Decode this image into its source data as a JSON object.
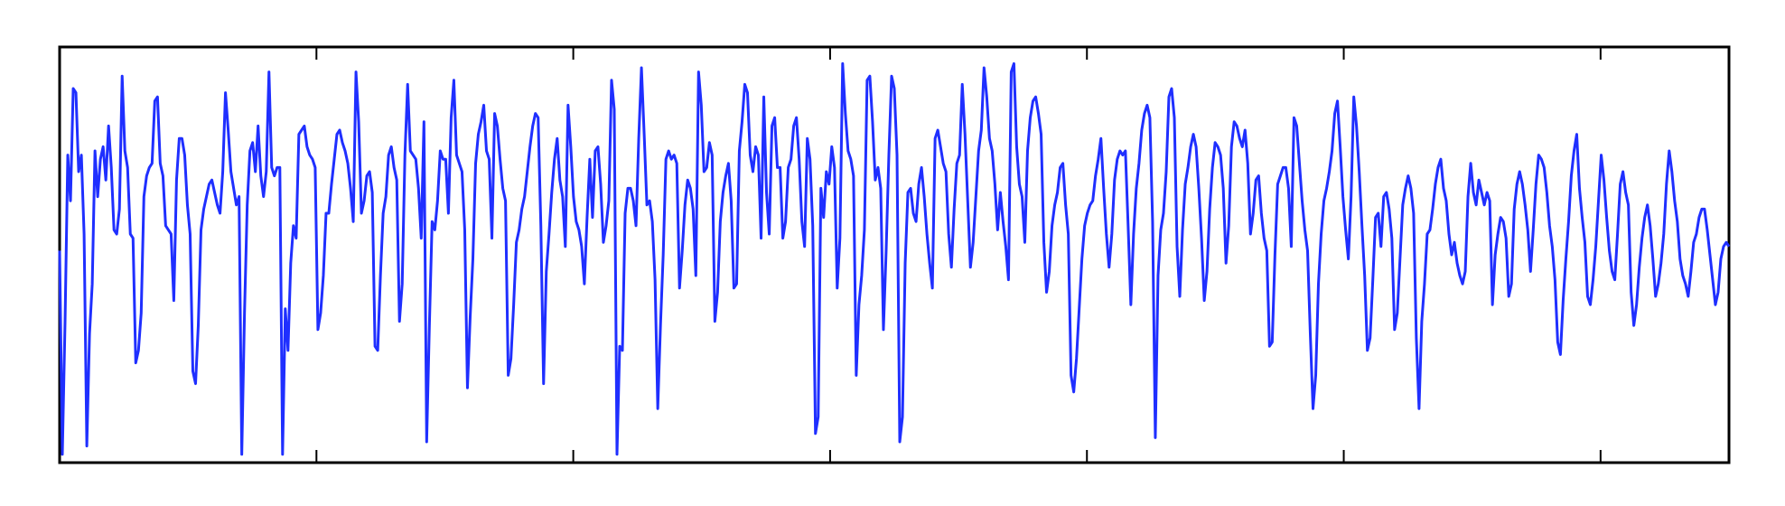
{
  "chart_data": {
    "type": "line",
    "title": "",
    "xlabel": "",
    "ylabel": "",
    "grid": false,
    "legend": "none",
    "xlim": [
      0,
      650
    ],
    "ylim": [
      0,
      1
    ],
    "xticks": [
      0,
      100,
      200,
      300,
      400,
      500,
      600
    ],
    "xtick_labels_shown": false,
    "yticks_shown": false,
    "series": [
      {
        "color": "#1f2fff",
        "x_start": 0,
        "x_end": 650,
        "values": [
          0.51,
          0.02,
          0.34,
          0.74,
          0.63,
          0.9,
          0.89,
          0.7,
          0.74,
          0.55,
          0.04,
          0.31,
          0.43,
          0.75,
          0.64,
          0.73,
          0.76,
          0.68,
          0.81,
          0.71,
          0.56,
          0.55,
          0.61,
          0.93,
          0.75,
          0.71,
          0.55,
          0.54,
          0.24,
          0.27,
          0.36,
          0.64,
          0.69,
          0.71,
          0.72,
          0.87,
          0.88,
          0.72,
          0.69,
          0.57,
          0.56,
          0.55,
          0.39,
          0.68,
          0.78,
          0.78,
          0.74,
          0.62,
          0.55,
          0.22,
          0.19,
          0.33,
          0.56,
          0.61,
          0.64,
          0.67,
          0.68,
          0.65,
          0.62,
          0.6,
          0.7,
          0.89,
          0.8,
          0.7,
          0.66,
          0.62,
          0.64,
          0.02,
          0.36,
          0.62,
          0.75,
          0.77,
          0.7,
          0.81,
          0.69,
          0.64,
          0.7,
          0.94,
          0.71,
          0.69,
          0.71,
          0.71,
          0.02,
          0.37,
          0.27,
          0.48,
          0.57,
          0.54,
          0.79,
          0.8,
          0.81,
          0.76,
          0.74,
          0.73,
          0.71,
          0.32,
          0.36,
          0.45,
          0.6,
          0.6,
          0.67,
          0.73,
          0.79,
          0.8,
          0.77,
          0.75,
          0.72,
          0.66,
          0.58,
          0.94,
          0.82,
          0.6,
          0.63,
          0.69,
          0.7,
          0.65,
          0.28,
          0.27,
          0.45,
          0.6,
          0.64,
          0.74,
          0.76,
          0.71,
          0.68,
          0.34,
          0.43,
          0.74,
          0.91,
          0.75,
          0.74,
          0.73,
          0.66,
          0.54,
          0.82,
          0.05,
          0.33,
          0.58,
          0.56,
          0.63,
          0.75,
          0.73,
          0.73,
          0.6,
          0.83,
          0.92,
          0.74,
          0.72,
          0.7,
          0.56,
          0.18,
          0.35,
          0.49,
          0.72,
          0.79,
          0.82,
          0.86,
          0.75,
          0.73,
          0.54,
          0.84,
          0.81,
          0.73,
          0.66,
          0.63,
          0.21,
          0.25,
          0.38,
          0.53,
          0.56,
          0.61,
          0.64,
          0.7,
          0.76,
          0.81,
          0.84,
          0.83,
          0.57,
          0.19,
          0.46,
          0.55,
          0.65,
          0.73,
          0.78,
          0.68,
          0.64,
          0.52,
          0.86,
          0.76,
          0.64,
          0.58,
          0.56,
          0.52,
          0.43,
          0.59,
          0.73,
          0.59,
          0.75,
          0.76,
          0.67,
          0.53,
          0.57,
          0.63,
          0.92,
          0.85,
          0.02,
          0.28,
          0.27,
          0.6,
          0.66,
          0.66,
          0.63,
          0.57,
          0.78,
          0.95,
          0.79,
          0.62,
          0.63,
          0.58,
          0.44,
          0.13,
          0.33,
          0.5,
          0.73,
          0.75,
          0.73,
          0.74,
          0.72,
          0.42,
          0.51,
          0.62,
          0.68,
          0.66,
          0.61,
          0.45,
          0.94,
          0.86,
          0.7,
          0.71,
          0.77,
          0.74,
          0.34,
          0.41,
          0.58,
          0.65,
          0.69,
          0.72,
          0.63,
          0.42,
          0.43,
          0.75,
          0.82,
          0.91,
          0.89,
          0.74,
          0.7,
          0.76,
          0.74,
          0.54,
          0.88,
          0.65,
          0.55,
          0.81,
          0.83,
          0.71,
          0.71,
          0.54,
          0.58,
          0.71,
          0.73,
          0.81,
          0.83,
          0.73,
          0.58,
          0.52,
          0.78,
          0.73,
          0.57,
          0.07,
          0.11,
          0.66,
          0.59,
          0.7,
          0.67,
          0.76,
          0.71,
          0.42,
          0.54,
          0.96,
          0.84,
          0.75,
          0.73,
          0.69,
          0.21,
          0.38,
          0.45,
          0.56,
          0.92,
          0.93,
          0.82,
          0.68,
          0.71,
          0.66,
          0.32,
          0.51,
          0.74,
          0.93,
          0.9,
          0.74,
          0.05,
          0.11,
          0.48,
          0.65,
          0.66,
          0.6,
          0.58,
          0.67,
          0.71,
          0.64,
          0.55,
          0.48,
          0.42,
          0.78,
          0.8,
          0.76,
          0.72,
          0.7,
          0.55,
          0.47,
          0.61,
          0.72,
          0.74,
          0.91,
          0.79,
          0.63,
          0.47,
          0.53,
          0.64,
          0.75,
          0.8,
          0.95,
          0.88,
          0.78,
          0.75,
          0.67,
          0.56,
          0.65,
          0.58,
          0.52,
          0.44,
          0.94,
          0.96,
          0.76,
          0.67,
          0.64,
          0.53,
          0.75,
          0.83,
          0.87,
          0.88,
          0.84,
          0.79,
          0.53,
          0.41,
          0.46,
          0.57,
          0.62,
          0.65,
          0.71,
          0.72,
          0.62,
          0.55,
          0.21,
          0.17,
          0.25,
          0.37,
          0.49,
          0.57,
          0.6,
          0.62,
          0.63,
          0.69,
          0.73,
          0.78,
          0.66,
          0.55,
          0.47,
          0.55,
          0.68,
          0.73,
          0.75,
          0.74,
          0.75,
          0.57,
          0.38,
          0.55,
          0.66,
          0.72,
          0.8,
          0.84,
          0.86,
          0.83,
          0.58,
          0.06,
          0.45,
          0.56,
          0.6,
          0.7,
          0.88,
          0.9,
          0.83,
          0.52,
          0.4,
          0.56,
          0.67,
          0.71,
          0.76,
          0.79,
          0.76,
          0.66,
          0.54,
          0.39,
          0.46,
          0.61,
          0.71,
          0.77,
          0.76,
          0.74,
          0.66,
          0.48,
          0.57,
          0.76,
          0.82,
          0.81,
          0.78,
          0.76,
          0.8,
          0.72,
          0.55,
          0.6,
          0.68,
          0.69,
          0.6,
          0.54,
          0.51,
          0.28,
          0.29,
          0.5,
          0.67,
          0.69,
          0.71,
          0.71,
          0.66,
          0.52,
          0.83,
          0.81,
          0.72,
          0.63,
          0.56,
          0.51,
          0.31,
          0.13,
          0.21,
          0.43,
          0.55,
          0.63,
          0.66,
          0.7,
          0.75,
          0.84,
          0.87,
          0.76,
          0.64,
          0.56,
          0.49,
          0.64,
          0.88,
          0.81,
          0.7,
          0.57,
          0.45,
          0.27,
          0.3,
          0.44,
          0.59,
          0.6,
          0.52,
          0.64,
          0.65,
          0.61,
          0.54,
          0.32,
          0.36,
          0.49,
          0.62,
          0.66,
          0.69,
          0.66,
          0.6,
          0.3,
          0.13,
          0.34,
          0.43,
          0.55,
          0.56,
          0.61,
          0.67,
          0.71,
          0.73,
          0.66,
          0.63,
          0.55,
          0.5,
          0.53,
          0.48,
          0.45,
          0.43,
          0.46,
          0.64,
          0.72,
          0.65,
          0.62,
          0.68,
          0.65,
          0.62,
          0.65,
          0.63,
          0.38,
          0.5,
          0.55,
          0.59,
          0.58,
          0.54,
          0.4,
          0.43,
          0.61,
          0.67,
          0.7,
          0.67,
          0.62,
          0.56,
          0.46,
          0.56,
          0.67,
          0.74,
          0.73,
          0.71,
          0.65,
          0.57,
          0.52,
          0.44,
          0.29,
          0.26,
          0.39,
          0.49,
          0.58,
          0.69,
          0.75,
          0.79,
          0.66,
          0.59,
          0.53,
          0.4,
          0.38,
          0.44,
          0.52,
          0.63,
          0.74,
          0.68,
          0.59,
          0.51,
          0.46,
          0.44,
          0.55,
          0.67,
          0.7,
          0.65,
          0.62,
          0.41,
          0.33,
          0.38,
          0.47,
          0.54,
          0.59,
          0.62,
          0.57,
          0.49,
          0.4,
          0.43,
          0.48,
          0.55,
          0.67,
          0.75,
          0.7,
          0.63,
          0.58,
          0.49,
          0.45,
          0.43,
          0.4,
          0.46,
          0.53,
          0.55,
          0.59,
          0.61,
          0.61,
          0.56,
          0.5,
          0.44,
          0.38,
          0.41,
          0.49,
          0.52,
          0.53,
          0.52
        ]
      }
    ]
  }
}
